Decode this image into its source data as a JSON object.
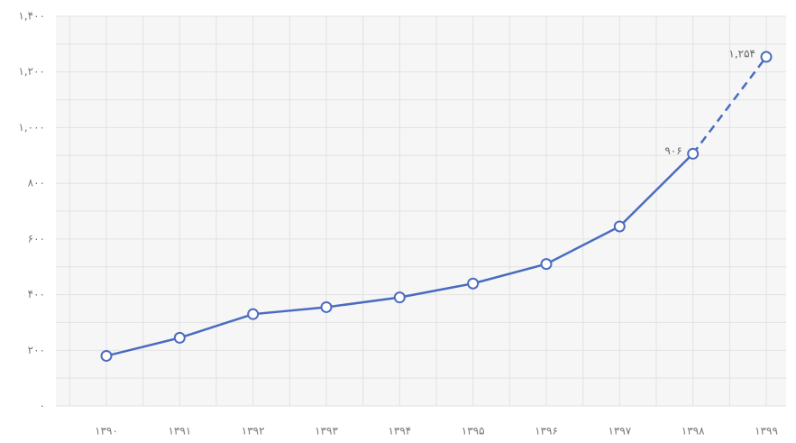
{
  "chart_data": {
    "type": "line",
    "categories": [
      "۱۳۹۰",
      "۱۳۹۱",
      "۱۳۹۲",
      "۱۳۹۳",
      "۱۳۹۴",
      "۱۳۹۵",
      "۱۳۹۶",
      "۱۳۹۷",
      "۱۳۹۸",
      "۱۳۹۹"
    ],
    "values": [
      180,
      245,
      330,
      355,
      390,
      440,
      510,
      645,
      906,
      1254
    ],
    "value_labels": [
      null,
      null,
      null,
      null,
      null,
      null,
      null,
      null,
      "۹۰۶",
      "۱,۲۵۴"
    ],
    "color": "#4a6cc0",
    "dashed_last_segment": true,
    "ylim": [
      0,
      1400
    ],
    "yticks": [
      {
        "value": 0,
        "label": "۰"
      },
      {
        "value": 200,
        "label": "۲۰۰"
      },
      {
        "value": 400,
        "label": "۴۰۰"
      },
      {
        "value": 600,
        "label": "۶۰۰"
      },
      {
        "value": 800,
        "label": "۸۰۰"
      },
      {
        "value": 1000,
        "label": "۱,۰۰۰"
      },
      {
        "value": 1200,
        "label": "۱,۲۰۰"
      },
      {
        "value": 1400,
        "label": "۱,۴۰۰"
      }
    ],
    "grid": true
  }
}
